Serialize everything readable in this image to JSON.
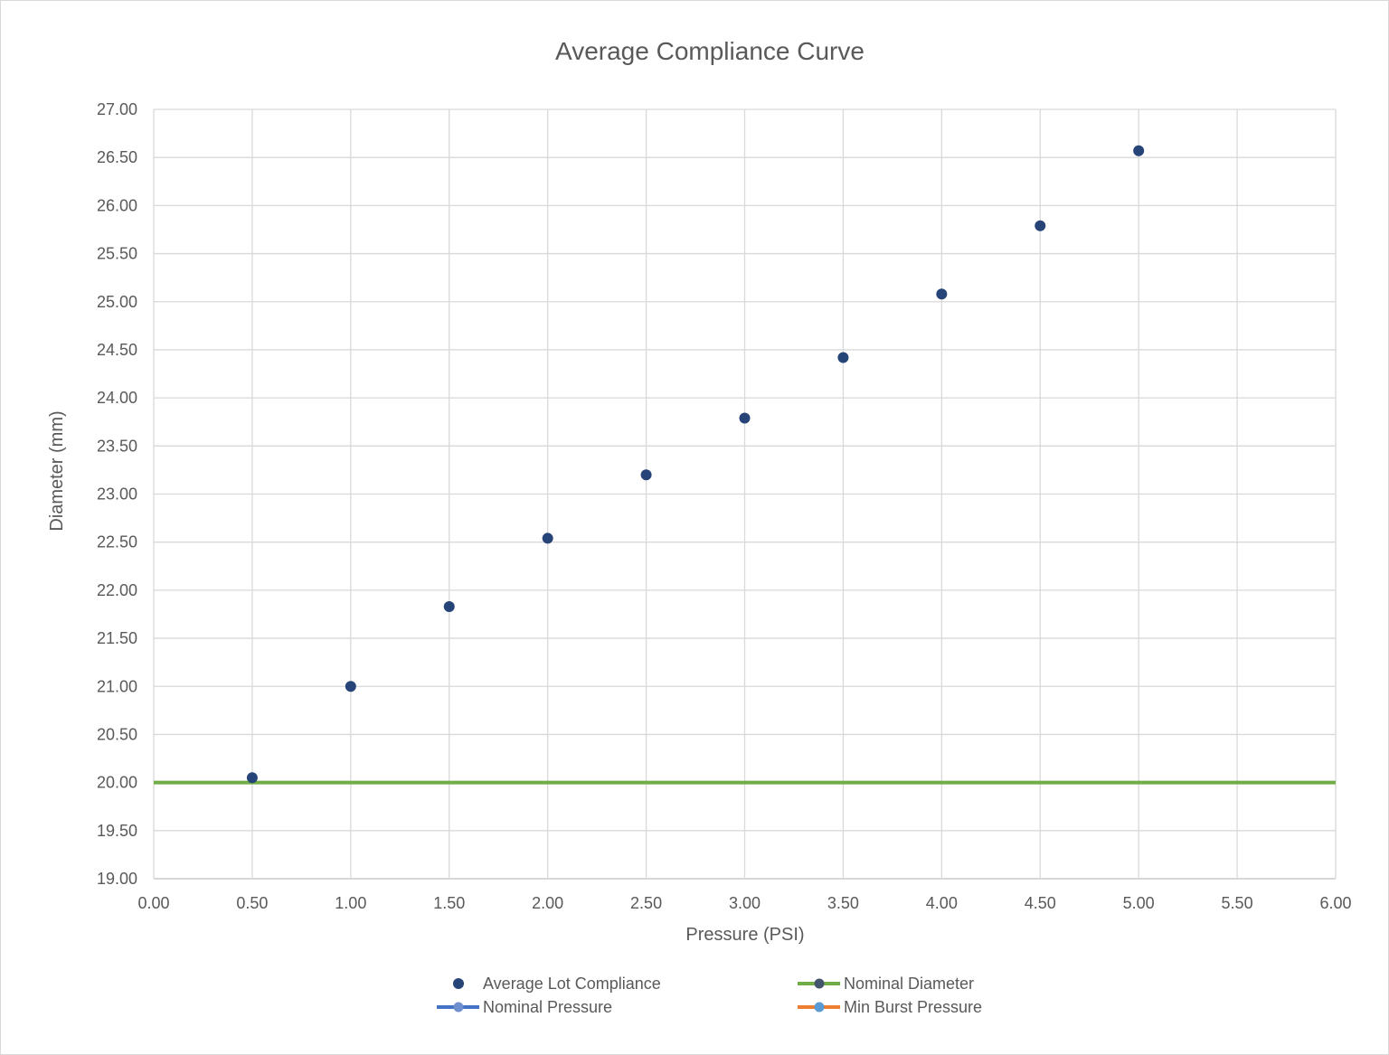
{
  "chart_data": {
    "type": "scatter",
    "title": "Average Compliance Curve",
    "xlabel": "Pressure (PSI)",
    "ylabel": "Diameter (mm)",
    "xlim": [
      0,
      6
    ],
    "ylim": [
      19,
      27
    ],
    "x_ticks": [
      "0.00",
      "0.50",
      "1.00",
      "1.50",
      "2.00",
      "2.50",
      "3.00",
      "3.50",
      "4.00",
      "4.50",
      "5.00",
      "5.50",
      "6.00"
    ],
    "y_ticks": [
      "19.00",
      "19.50",
      "20.00",
      "20.50",
      "21.00",
      "21.50",
      "22.00",
      "22.50",
      "23.00",
      "23.50",
      "24.00",
      "24.50",
      "25.00",
      "25.50",
      "26.00",
      "26.50",
      "27.00"
    ],
    "grid": true,
    "legend_position": "bottom",
    "series": [
      {
        "name": "Average Lot Compliance",
        "kind": "markers",
        "color": "#264478",
        "x": [
          0.5,
          1.0,
          1.5,
          2.0,
          2.5,
          3.0,
          3.5,
          4.0,
          4.5,
          5.0
        ],
        "y": [
          20.05,
          21.0,
          21.83,
          22.54,
          23.2,
          23.79,
          24.42,
          25.08,
          25.79,
          26.57
        ]
      },
      {
        "name": "Nominal Diameter",
        "kind": "hline",
        "color": "#70ad47",
        "marker_color": "#44546a",
        "y": 20.0
      },
      {
        "name": "Nominal Pressure",
        "kind": "line",
        "color": "#4472c4",
        "marker_color": "#6f8fcf",
        "x": [],
        "y": []
      },
      {
        "name": "Min Burst Pressure",
        "kind": "line",
        "color": "#ed7d31",
        "marker_color": "#5b9bd5",
        "x": [],
        "y": []
      }
    ]
  }
}
